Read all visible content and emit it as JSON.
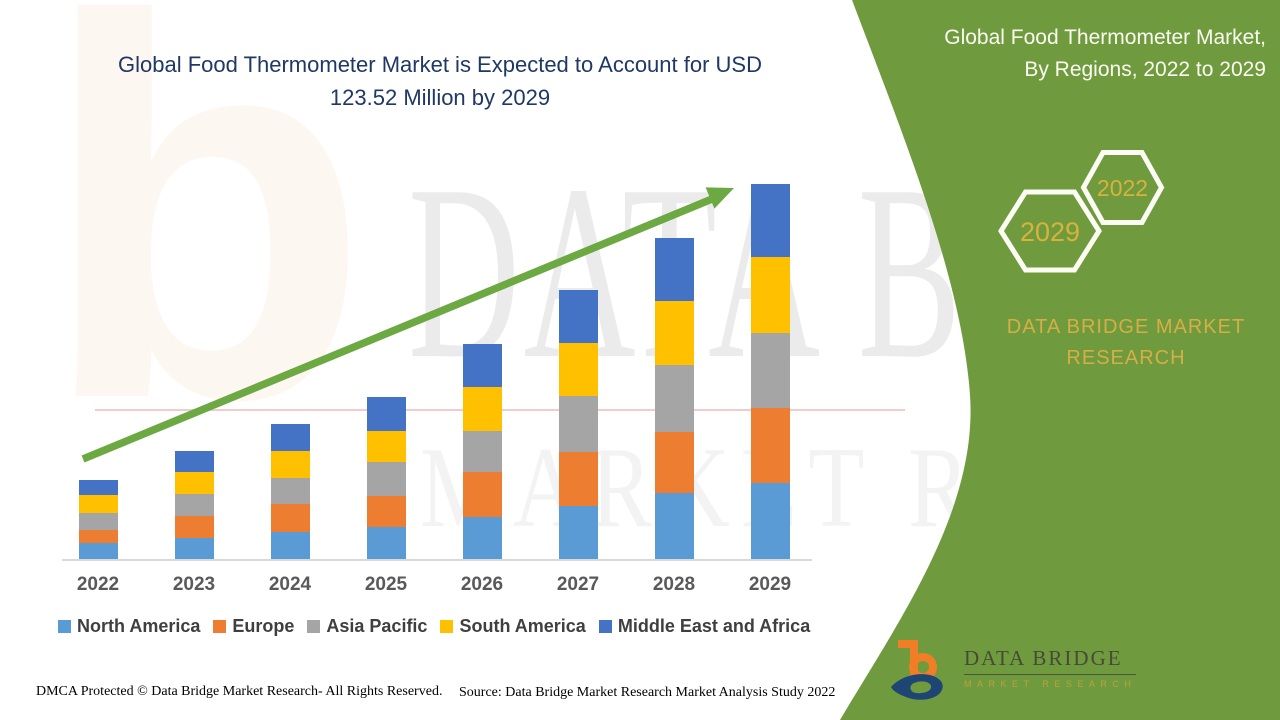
{
  "main": {
    "title_line1": "Global Food Thermometer Market is Expected to Account for USD",
    "title_line2": "123.52 Million by 2029",
    "title_color": "#1F3864"
  },
  "chart_data": {
    "type": "bar",
    "stacked": true,
    "title": "Global Food Thermometer Market is Expected to Account for USD 123.52 Million by 2029",
    "unit": "USD Million",
    "categories": [
      "2022",
      "2023",
      "2024",
      "2025",
      "2026",
      "2027",
      "2028",
      "2029"
    ],
    "series": [
      {
        "name": "North America",
        "color": "#5B9BD5",
        "values": [
          5.2,
          6.8,
          8.8,
          10.5,
          13.8,
          17.6,
          21.8,
          24.9
        ]
      },
      {
        "name": "Europe",
        "color": "#ED7D31",
        "values": [
          4.4,
          7.2,
          9.4,
          10.1,
          15.0,
          17.7,
          20.1,
          24.7
        ]
      },
      {
        "name": "Asia Pacific",
        "color": "#A5A5A5",
        "values": [
          5.7,
          7.4,
          8.4,
          11.5,
          13.5,
          18.3,
          22.0,
          24.7
        ]
      },
      {
        "name": "South America",
        "color": "#FFC000",
        "values": [
          5.8,
          7.3,
          9.0,
          10.2,
          14.3,
          17.6,
          20.9,
          25.0
        ]
      },
      {
        "name": "Middle East and Africa",
        "color": "#4472C4",
        "values": [
          4.9,
          6.8,
          8.7,
          11.0,
          14.2,
          17.2,
          20.9,
          24.22
        ]
      }
    ],
    "totals_by_year": [
      26.0,
      35.5,
      44.3,
      53.3,
      70.8,
      88.4,
      105.7,
      123.52
    ],
    "values_estimated_from_pixels": true,
    "xlabel": "",
    "ylabel": "",
    "ylim": [
      0,
      128
    ],
    "gridlines": false,
    "y_axis_visible": false,
    "legend_position": "bottom",
    "annotations": [
      "upward green trend arrow from 2022 to 2029"
    ]
  },
  "side_panel": {
    "bg_color": "#6F9B3E",
    "title_line1": "Global Food Thermometer Market,",
    "title_line2": "By Regions, 2022 to 2029",
    "hexagon_large_label": "2029",
    "hexagon_small_label": "2022",
    "brand_line1": "DATA BRIDGE MARKET",
    "brand_line2": "RESEARCH",
    "gold_color": "#D9B23C"
  },
  "logo": {
    "name": "DATA BRIDGE",
    "subtext": "MARKET RESEARCH"
  },
  "watermark": {
    "letter": "b",
    "row1": "DATA BRIDGE",
    "row2": "MARKET RESEARCH"
  },
  "footer": {
    "dmca": "DMCA Protected © Data Bridge Market Research- All Rights Reserved.",
    "source": "Source: Data Bridge Market Research Market Analysis Study 2022"
  }
}
